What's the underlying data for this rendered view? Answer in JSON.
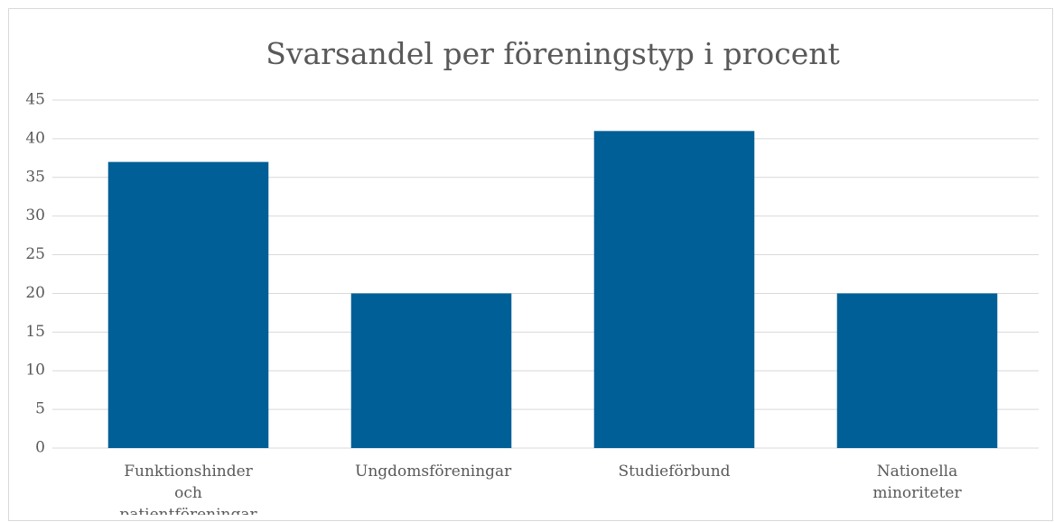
{
  "chart_data": {
    "type": "bar",
    "title": "Svarsandel per föreningstyp i procent",
    "categories": [
      "Funktionshinder och patientföreningar",
      "Ungdomsföreningar",
      "Studieförbund",
      "Nationella minoriteter"
    ],
    "values": [
      37,
      20,
      41,
      20
    ],
    "color": "#005f96",
    "ylim": [
      0,
      45
    ],
    "yticks": [
      0,
      5,
      10,
      15,
      20,
      25,
      30,
      35,
      40,
      45
    ],
    "grid": true
  }
}
